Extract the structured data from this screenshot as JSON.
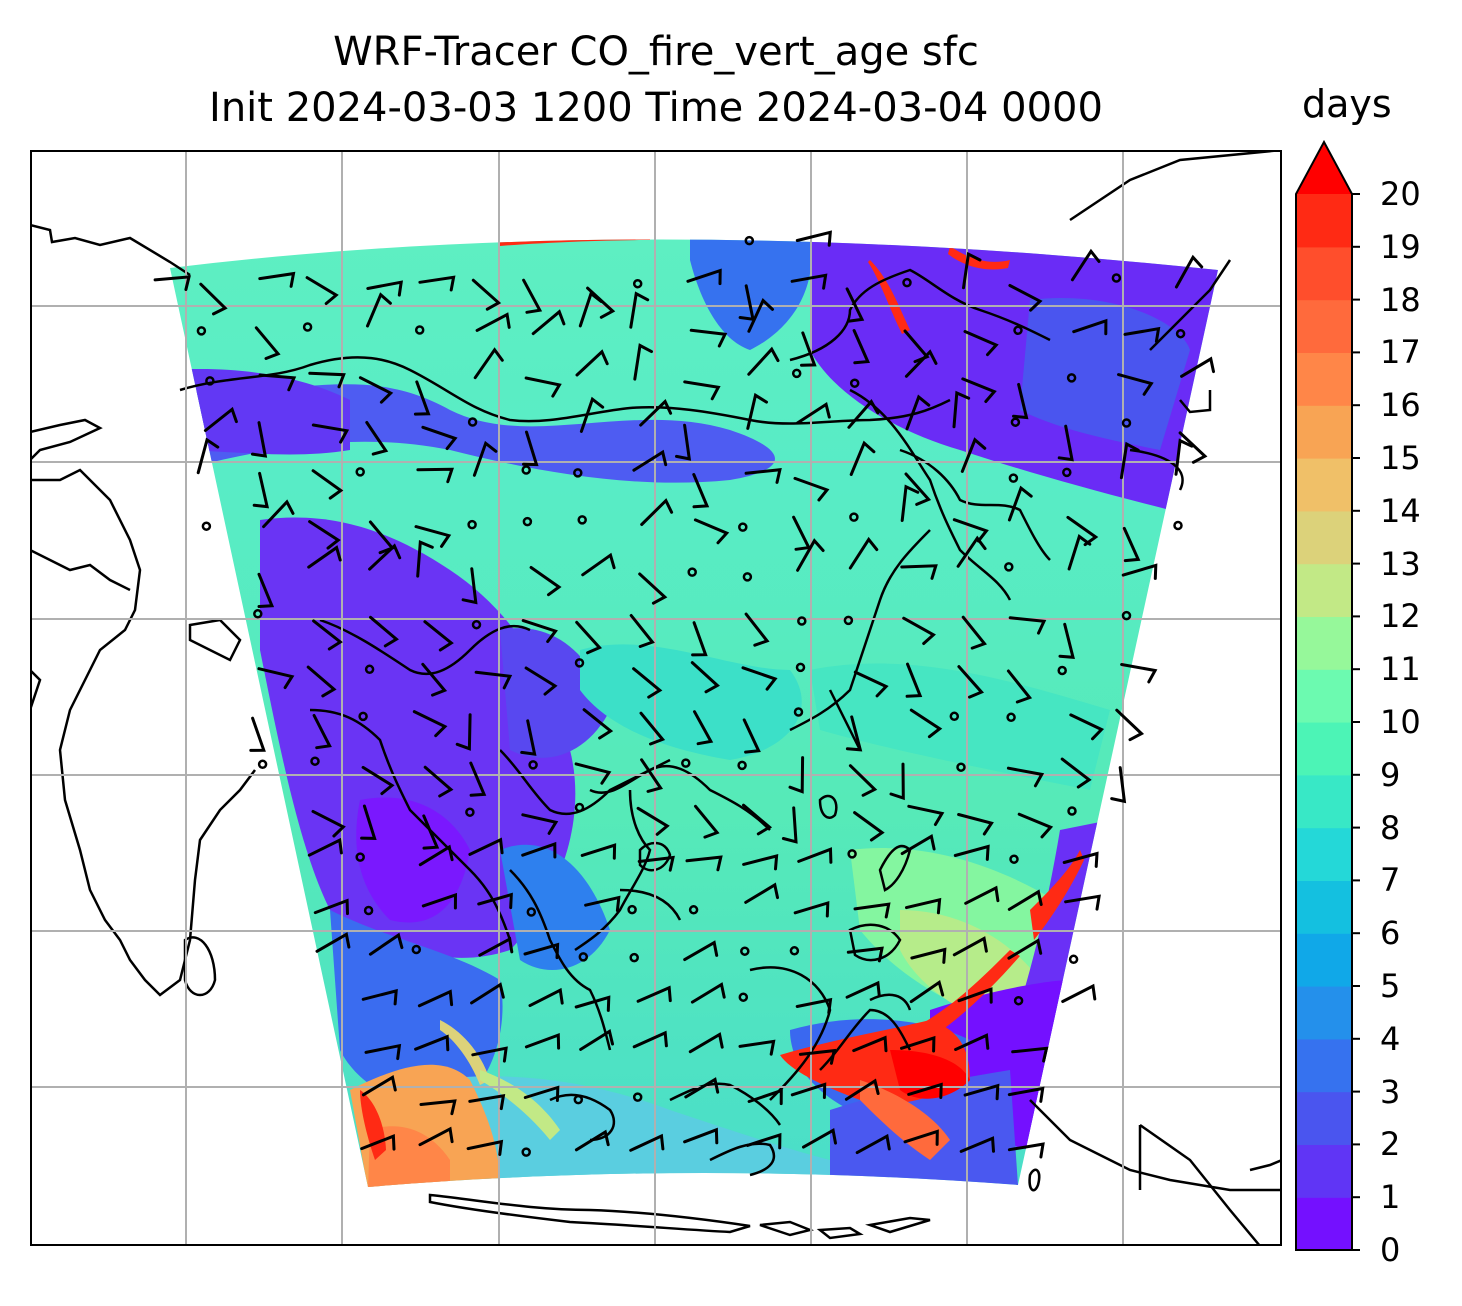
{
  "title": {
    "line1": "WRF-Tracer CO_fire_vert_age sfc",
    "line2": "Init 2024-03-03 1200 Time 2024-03-04 0000"
  },
  "colorbar": {
    "label": "days",
    "min": 0,
    "max": 20,
    "extend": "max",
    "ticks": [
      "0",
      "1",
      "2",
      "3",
      "4",
      "5",
      "6",
      "7",
      "8",
      "9",
      "10",
      "11",
      "12",
      "13",
      "14",
      "15",
      "16",
      "17",
      "18",
      "19",
      "20"
    ],
    "colors": [
      "#7410ff",
      "#6035f5",
      "#4a55ef",
      "#3672ef",
      "#2490eb",
      "#10a8e8",
      "#14c0e0",
      "#24d8d8",
      "#38e8c6",
      "#4cf4b6",
      "#6cfab0",
      "#96f89a",
      "#c2e986",
      "#dcd27a",
      "#f0c068",
      "#f8a454",
      "#ff8648",
      "#ff6a3c",
      "#ff4e2c",
      "#ff2a14",
      "#ff0000"
    ]
  },
  "map": {
    "gridlines": true,
    "domain_field": "CO_fire_vert_age",
    "wind_barbs": true
  }
}
